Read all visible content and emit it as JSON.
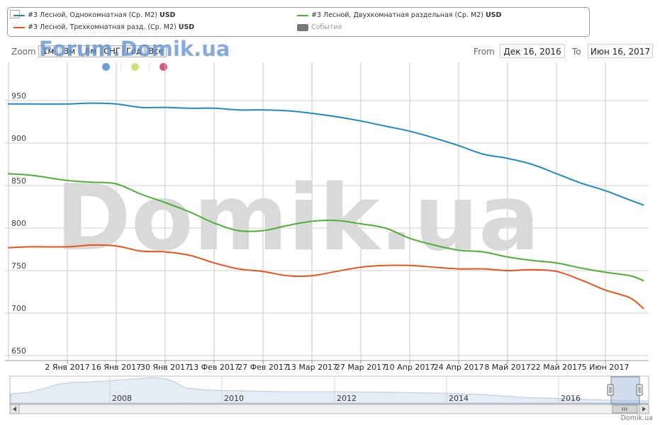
{
  "legend": {
    "items": [
      {
        "label": "#3 Лесной, Однокомнатная (Ср. M2)",
        "unit": "USD",
        "color": "#1f8ac0"
      },
      {
        "label": "#3 Лесной, Трехкомнатная разд. (Ср. M2)",
        "unit": "USD",
        "color": "#e8541c"
      },
      {
        "label": "#3 Лесной, Двухкомнатная раздельная (Ср. M2)",
        "unit": "USD",
        "color": "#4bb034"
      },
      {
        "label": "События",
        "unit": "",
        "color": "#777777"
      }
    ]
  },
  "toolbar": {
    "zoom_label": "Zoom",
    "buttons": [
      "1м",
      "3м",
      "6м",
      "СНГ",
      "Год",
      "Все"
    ],
    "from_label": "From",
    "from_value": "Дек 16, 2016",
    "to_label": "To",
    "to_value": "Июн 16, 2017"
  },
  "watermark_top": "Forum.Domik.ua",
  "watermark_big": "Domik.ua",
  "credit": "Domik.ua",
  "flags": [
    {
      "color": "#6c9fd3"
    },
    {
      "color": "#d6e07a"
    },
    {
      "color": "#d6567f"
    }
  ],
  "chart_data": {
    "type": "line",
    "title": "",
    "xlabel": "",
    "ylabel": "",
    "ylim": [
      645,
      950
    ],
    "yticks": [
      650,
      700,
      750,
      800,
      850,
      900,
      950
    ],
    "xlim": [
      "2016-12-16",
      "2017-06-16"
    ],
    "xticks": [
      {
        "date": "2017-01-02",
        "label": "2 Янв 2017"
      },
      {
        "date": "2017-01-16",
        "label": "16 Янв 2017"
      },
      {
        "date": "2017-01-30",
        "label": "30 Янв 2017"
      },
      {
        "date": "2017-02-13",
        "label": "13 Фев 2017"
      },
      {
        "date": "2017-02-27",
        "label": "27 Фев 2017"
      },
      {
        "date": "2017-03-13",
        "label": "13 Мар 2017"
      },
      {
        "date": "2017-03-27",
        "label": "27 Мар 2017"
      },
      {
        "date": "2017-04-10",
        "label": "10 Апр 2017"
      },
      {
        "date": "2017-04-24",
        "label": "24 Апр 2017"
      },
      {
        "date": "2017-05-08",
        "label": "8 Май 2017"
      },
      {
        "date": "2017-05-22",
        "label": "22 Май 2017"
      },
      {
        "date": "2017-06-05",
        "label": "5 Июн 2017"
      }
    ],
    "grid": true,
    "legend_position": "top",
    "series": [
      {
        "name": "#3 Лесной, Однокомнатная (Ср. M2) USD",
        "color": "#1f8ac0",
        "x": [
          "2016-12-16",
          "2016-12-23",
          "2017-01-02",
          "2017-01-09",
          "2017-01-16",
          "2017-01-23",
          "2017-01-30",
          "2017-02-06",
          "2017-02-13",
          "2017-02-20",
          "2017-02-27",
          "2017-03-06",
          "2017-03-13",
          "2017-03-20",
          "2017-03-27",
          "2017-04-03",
          "2017-04-10",
          "2017-04-17",
          "2017-04-24",
          "2017-05-01",
          "2017-05-08",
          "2017-05-15",
          "2017-05-22",
          "2017-05-29",
          "2017-06-05",
          "2017-06-12",
          "2017-06-16"
        ],
        "y": [
          946,
          946,
          946,
          947,
          946,
          942,
          942,
          941,
          941,
          939,
          939,
          938,
          935,
          931,
          926,
          920,
          914,
          906,
          897,
          887,
          882,
          875,
          864,
          853,
          844,
          833,
          827
        ]
      },
      {
        "name": "#3 Лесной, Двухкомнатная раздельная (Ср. M2) USD",
        "color": "#4bb034",
        "x": [
          "2016-12-16",
          "2016-12-23",
          "2017-01-02",
          "2017-01-09",
          "2017-01-16",
          "2017-01-23",
          "2017-01-30",
          "2017-02-06",
          "2017-02-13",
          "2017-02-20",
          "2017-02-27",
          "2017-03-06",
          "2017-03-13",
          "2017-03-20",
          "2017-03-27",
          "2017-04-03",
          "2017-04-10",
          "2017-04-17",
          "2017-04-24",
          "2017-05-01",
          "2017-05-08",
          "2017-05-15",
          "2017-05-22",
          "2017-05-29",
          "2017-06-05",
          "2017-06-12",
          "2017-06-16"
        ],
        "y": [
          864,
          862,
          856,
          854,
          852,
          840,
          830,
          819,
          806,
          797,
          797,
          803,
          808,
          809,
          805,
          800,
          788,
          780,
          774,
          772,
          766,
          762,
          759,
          753,
          748,
          744,
          738
        ]
      },
      {
        "name": "#3 Лесной, Трехкомнатная разд. (Ср. M2) USD",
        "color": "#e8541c",
        "x": [
          "2016-12-16",
          "2016-12-23",
          "2017-01-02",
          "2017-01-09",
          "2017-01-16",
          "2017-01-23",
          "2017-01-30",
          "2017-02-06",
          "2017-02-13",
          "2017-02-20",
          "2017-02-27",
          "2017-03-06",
          "2017-03-13",
          "2017-03-20",
          "2017-03-27",
          "2017-04-03",
          "2017-04-10",
          "2017-04-17",
          "2017-04-24",
          "2017-05-01",
          "2017-05-08",
          "2017-05-15",
          "2017-05-22",
          "2017-05-29",
          "2017-06-05",
          "2017-06-12",
          "2017-06-16"
        ],
        "y": [
          777,
          778,
          778,
          780,
          779,
          773,
          772,
          768,
          759,
          752,
          749,
          744,
          744,
          749,
          754,
          756,
          756,
          754,
          752,
          752,
          750,
          751,
          749,
          739,
          727,
          718,
          705
        ]
      }
    ]
  },
  "navigator": {
    "years": [
      "2008",
      "2010",
      "2012",
      "2014",
      "2016"
    ]
  }
}
